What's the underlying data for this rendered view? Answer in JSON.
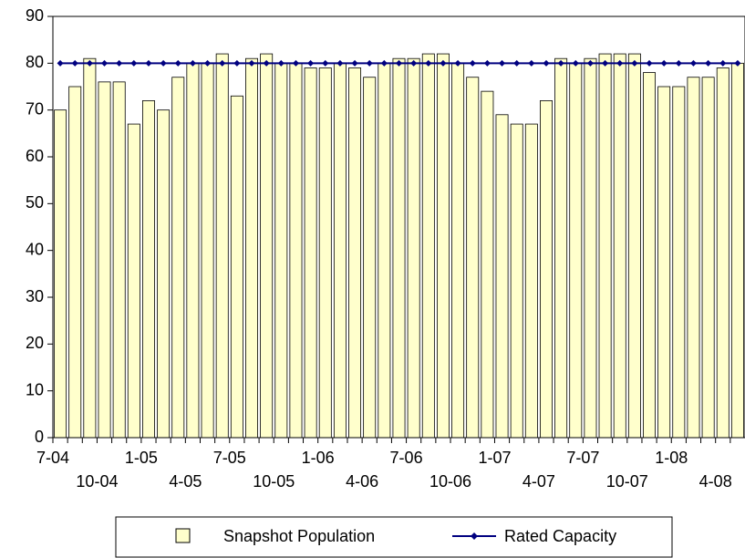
{
  "chart_data": {
    "type": "bar-line",
    "categories": [
      "7-04",
      null,
      null,
      "10-04",
      null,
      null,
      "1-05",
      null,
      null,
      "4-05",
      null,
      null,
      "7-05",
      null,
      null,
      "10-05",
      null,
      null,
      "1-06",
      null,
      null,
      "4-06",
      null,
      null,
      "7-06",
      null,
      null,
      "10-06",
      null,
      null,
      "1-07",
      null,
      null,
      "4-07",
      null,
      null,
      "7-07",
      null,
      null,
      "10-07",
      null,
      null,
      "1-08",
      null,
      null,
      "4-08",
      null
    ],
    "series": [
      {
        "name": "Snapshot Population",
        "type": "bar",
        "color": "#ffffcc",
        "values": [
          70,
          75,
          81,
          76,
          76,
          67,
          72,
          70,
          77,
          80,
          80,
          82,
          73,
          81,
          82,
          80,
          80,
          79,
          79,
          80,
          79,
          77,
          80,
          81,
          81,
          82,
          82,
          80,
          77,
          74,
          69,
          67,
          67,
          72,
          81,
          80,
          81,
          82,
          82,
          82,
          78,
          75,
          75,
          77,
          77,
          79,
          80
        ]
      },
      {
        "name": "Rated Capacity",
        "type": "line",
        "color": "#000080",
        "values": [
          80,
          80,
          80,
          80,
          80,
          80,
          80,
          80,
          80,
          80,
          80,
          80,
          80,
          80,
          80,
          80,
          80,
          80,
          80,
          80,
          80,
          80,
          80,
          80,
          80,
          80,
          80,
          80,
          80,
          80,
          80,
          80,
          80,
          80,
          80,
          80,
          80,
          80,
          80,
          80,
          80,
          80,
          80,
          80,
          80,
          80,
          80
        ]
      }
    ],
    "ylim": [
      0,
      90
    ],
    "yticks": [
      0,
      10,
      20,
      30,
      40,
      50,
      60,
      70,
      80,
      90
    ]
  }
}
